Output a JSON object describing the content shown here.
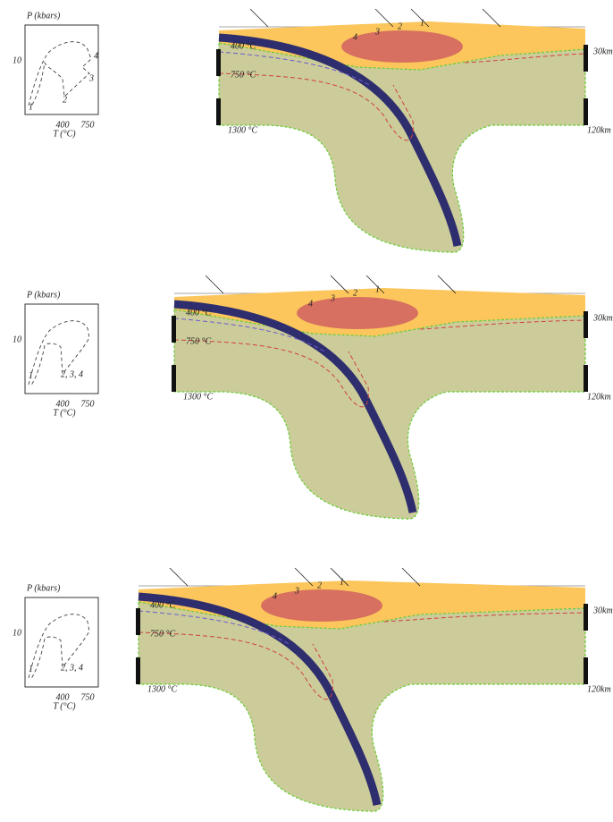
{
  "panels": [
    {
      "inset": {
        "y_label": "P (kbars)",
        "y_tick": "10",
        "x_ticks": [
          "400",
          "750"
        ],
        "x_label": "T (°C)",
        "points": [
          "1",
          "2",
          "3",
          "4"
        ]
      },
      "section": {
        "isotherms": [
          "400 °C",
          "750 °C",
          "1300 °C"
        ],
        "depths": [
          "30km",
          "120km"
        ],
        "zones": [
          "1",
          "2",
          "3",
          "4"
        ]
      }
    },
    {
      "inset": {
        "y_label": "P (kbars)",
        "y_tick": "10",
        "x_ticks": [
          "400",
          "750"
        ],
        "x_label": "T (°C)",
        "points": [
          "1",
          "2, 3, 4"
        ]
      },
      "section": {
        "isotherms": [
          "400 °C",
          "750 °C",
          "1300 °C"
        ],
        "depths": [
          "30km",
          "120km"
        ],
        "zones": [
          "1",
          "2",
          "3",
          "4"
        ]
      }
    },
    {
      "inset": {
        "y_label": "P (kbars)",
        "y_tick": "10",
        "x_ticks": [
          "400",
          "750"
        ],
        "x_label": "T (°C)",
        "points": [
          "1",
          "2, 3, 4"
        ]
      },
      "section": {
        "isotherms": [
          "400 °C",
          "750 °C",
          "1300 °C"
        ],
        "depths": [
          "30km",
          "120km"
        ],
        "zones": [
          "1",
          "2",
          "3",
          "4"
        ]
      }
    }
  ]
}
